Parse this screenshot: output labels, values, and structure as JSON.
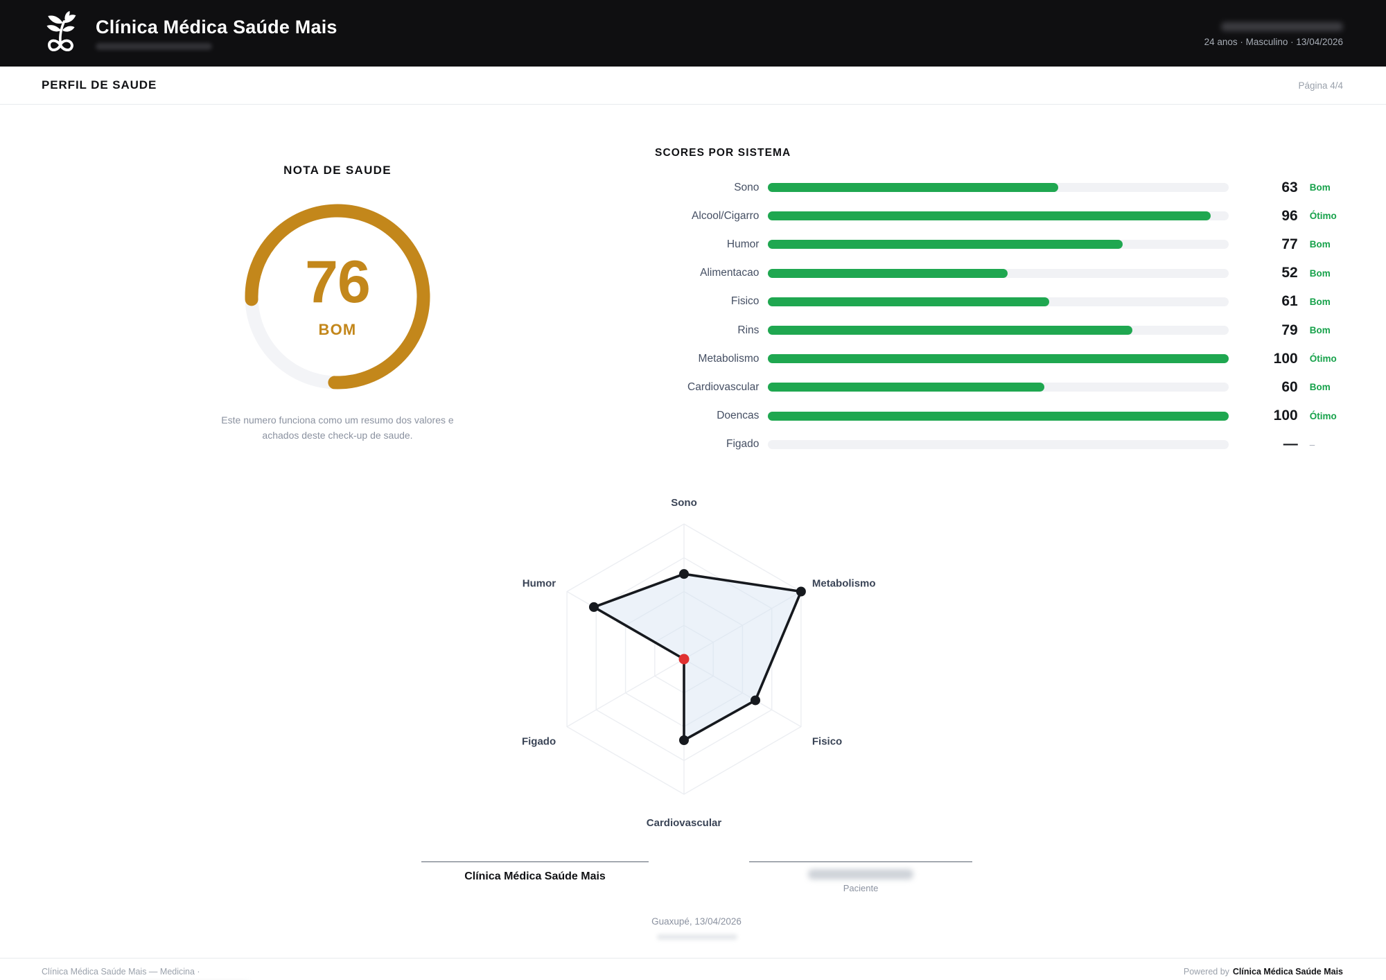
{
  "header": {
    "clinic_name": "Clínica Médica Saúde Mais",
    "patient_meta": "24 anos · Masculino · 13/04/2026"
  },
  "subheader": {
    "title": "PERFIL DE SAUDE",
    "page": "Página 4/4"
  },
  "gauge_section": {
    "note": "Este numero funciona como um resumo dos valores e achados deste check-up de saude."
  },
  "chart_data": [
    {
      "type": "bar",
      "orientation": "horizontal",
      "title": "SCORES POR SISTEMA",
      "categories": [
        "Sono",
        "Alcool/Cigarro",
        "Humor",
        "Alimentacao",
        "Fisico",
        "Rins",
        "Metabolismo",
        "Cardiovascular",
        "Doencas",
        "Figado"
      ],
      "values": [
        63,
        96,
        77,
        52,
        61,
        79,
        100,
        60,
        100,
        null
      ],
      "value_labels": [
        "63",
        "96",
        "77",
        "52",
        "61",
        "79",
        "100",
        "60",
        "100",
        "—"
      ],
      "status_labels": [
        "Bom",
        "Ótimo",
        "Bom",
        "Bom",
        "Bom",
        "Bom",
        "Ótimo",
        "Bom",
        "Ótimo",
        "–"
      ],
      "xlim": [
        0,
        100
      ],
      "bar_color": "#1FA750",
      "track_color": "#F1F2F5",
      "status_color": "#17A24B"
    },
    {
      "type": "radar",
      "axes": [
        "Sono",
        "Metabolismo",
        "Fisico",
        "Cardiovascular",
        "Figado",
        "Humor"
      ],
      "values": [
        63,
        100,
        61,
        60,
        0,
        77
      ],
      "max": 100,
      "missing_axes": [
        "Figado"
      ],
      "stroke_color": "#16191E",
      "fill_color": "rgba(213,226,241,0.45)",
      "grid_color": "#ECEEF2",
      "missing_point_color": "#E03131",
      "missing_label_color": "#DC2626",
      "grid_rings": [
        0.25,
        0.5,
        0.75,
        1
      ]
    },
    {
      "type": "gauge",
      "title": "NOTA DE SAUDE",
      "value": 76,
      "max": 100,
      "label": "BOM",
      "color": "#C3871B",
      "track_color": "#F3F4F7"
    }
  ],
  "signature": {
    "clinic": "Clínica Médica Saúde Mais",
    "patient_role": "Paciente",
    "place_date": "Guaxupé, 13/04/2026"
  },
  "footer": {
    "left": "Clínica Médica Saúde Mais — Medicina ·",
    "powered_prefix": "Powered by",
    "powered_brand": "Clínica Médica Saúde Mais"
  }
}
